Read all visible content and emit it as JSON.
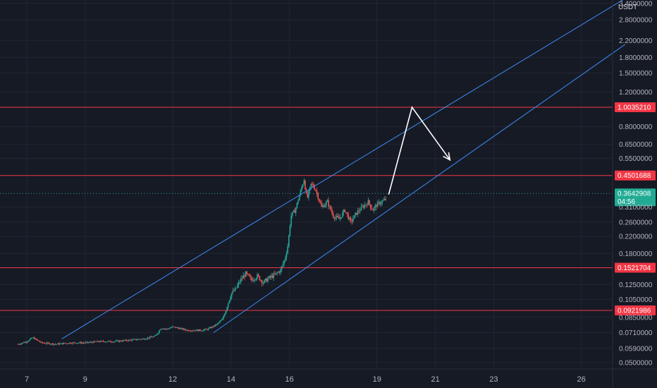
{
  "chart_data": {
    "type": "candlestick",
    "title": "",
    "currency": "USDT",
    "y_scale": "log",
    "ylim": [
      0.045,
      3.4
    ],
    "xlim": [
      6.7,
      27.5
    ],
    "price_ticks": [
      "3.4000000",
      "2.8000000",
      "2.2000000",
      "1.8000000",
      "1.5000000",
      "1.2000000",
      "0.8000000",
      "0.6500000",
      "0.5500000",
      "0.3100000",
      "0.2600000",
      "0.2200000",
      "0.1800000",
      "0.1250000",
      "0.1050000",
      "0.0850000",
      "0.0710000",
      "0.0590000",
      "0.0500000"
    ],
    "price_tick_values": [
      3.4,
      2.8,
      2.2,
      1.8,
      1.5,
      1.2,
      0.8,
      0.65,
      0.55,
      0.31,
      0.26,
      0.22,
      0.18,
      0.125,
      0.105,
      0.085,
      0.071,
      0.059,
      0.05
    ],
    "time_ticks": [
      "7",
      "9",
      "12",
      "14",
      "16",
      "19",
      "21",
      "23",
      "26"
    ],
    "time_tick_values": [
      7,
      9,
      12,
      14,
      16,
      19,
      21,
      23,
      26
    ],
    "horizontal_levels": [
      {
        "label": "1.0035210",
        "value": 1.003521
      },
      {
        "label": "0.4501688",
        "value": 0.4501688
      },
      {
        "label": "0.1521704",
        "value": 0.1521704
      },
      {
        "label": "0.0921986",
        "value": 0.0921986
      }
    ],
    "current_price": {
      "label": "0.3642908",
      "value": 0.3642908,
      "countdown": "04:56"
    },
    "price_path": [
      [
        6.7,
        0.062
      ],
      [
        7.0,
        0.064
      ],
      [
        7.2,
        0.067
      ],
      [
        7.5,
        0.063
      ],
      [
        8.0,
        0.062
      ],
      [
        8.5,
        0.063
      ],
      [
        9.0,
        0.063
      ],
      [
        9.5,
        0.064
      ],
      [
        10.0,
        0.064
      ],
      [
        10.5,
        0.065
      ],
      [
        11.0,
        0.066
      ],
      [
        11.4,
        0.068
      ],
      [
        11.6,
        0.075
      ],
      [
        11.8,
        0.074
      ],
      [
        12.0,
        0.076
      ],
      [
        12.5,
        0.073
      ],
      [
        13.0,
        0.073
      ],
      [
        13.2,
        0.074
      ],
      [
        13.5,
        0.078
      ],
      [
        13.7,
        0.083
      ],
      [
        13.85,
        0.096
      ],
      [
        14.0,
        0.112
      ],
      [
        14.15,
        0.118
      ],
      [
        14.3,
        0.13
      ],
      [
        14.5,
        0.142
      ],
      [
        14.7,
        0.132
      ],
      [
        14.9,
        0.138
      ],
      [
        15.1,
        0.128
      ],
      [
        15.3,
        0.135
      ],
      [
        15.5,
        0.14
      ],
      [
        15.7,
        0.148
      ],
      [
        15.85,
        0.17
      ],
      [
        15.95,
        0.2
      ],
      [
        16.05,
        0.28
      ],
      [
        16.2,
        0.3
      ],
      [
        16.35,
        0.36
      ],
      [
        16.5,
        0.43
      ],
      [
        16.6,
        0.34
      ],
      [
        16.75,
        0.41
      ],
      [
        16.9,
        0.38
      ],
      [
        17.1,
        0.31
      ],
      [
        17.3,
        0.33
      ],
      [
        17.5,
        0.28
      ],
      [
        17.7,
        0.27
      ],
      [
        17.9,
        0.3
      ],
      [
        18.1,
        0.26
      ],
      [
        18.3,
        0.29
      ],
      [
        18.5,
        0.31
      ],
      [
        18.7,
        0.33
      ],
      [
        18.85,
        0.3
      ],
      [
        19.0,
        0.32
      ],
      [
        19.15,
        0.33
      ],
      [
        19.3,
        0.3397
      ]
    ],
    "channel_lines": [
      {
        "x1": 8.2,
        "y1": 0.066,
        "x2": 27.5,
        "y2": 3.6
      },
      {
        "x1": 13.4,
        "y1": 0.071,
        "x2": 27.5,
        "y2": 2.1
      }
    ],
    "projection": [
      [
        19.4,
        0.36
      ],
      [
        20.2,
        1.003521
      ],
      [
        21.5,
        0.54
      ]
    ]
  },
  "colors": {
    "background": "#161a25",
    "grid": "#222632",
    "up": "#26a69a",
    "down": "#ef5350",
    "level": "#f23645",
    "channel": "#3d8cf5",
    "projection": "#ffffff",
    "current": "#22ab94"
  }
}
